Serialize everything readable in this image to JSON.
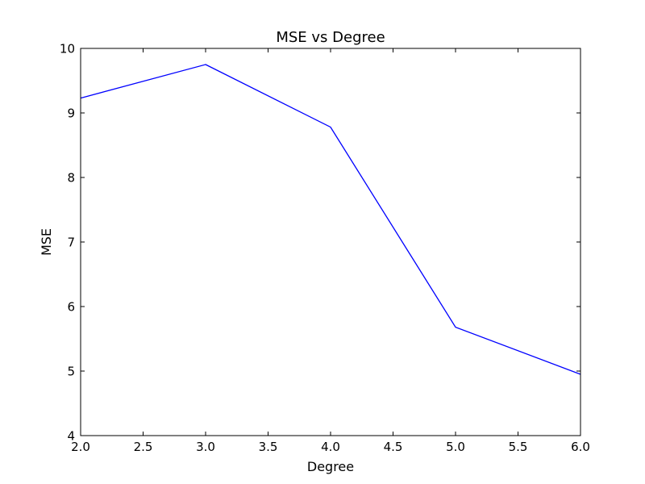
{
  "chart_data": {
    "type": "line",
    "title": "MSE vs Degree",
    "xlabel": "Degree",
    "ylabel": "MSE",
    "xlim": [
      2.0,
      6.0
    ],
    "ylim": [
      4,
      10
    ],
    "xticks": [
      "2.0",
      "2.5",
      "3.0",
      "3.5",
      "4.0",
      "4.5",
      "5.0",
      "5.5",
      "6.0"
    ],
    "yticks": [
      "4",
      "5",
      "6",
      "7",
      "8",
      "9",
      "10"
    ],
    "grid": false,
    "series": [
      {
        "color": "#0000ff",
        "x": [
          2,
          3,
          4,
          5,
          6
        ],
        "y": [
          9.23,
          9.75,
          8.78,
          5.68,
          4.95
        ]
      }
    ]
  }
}
